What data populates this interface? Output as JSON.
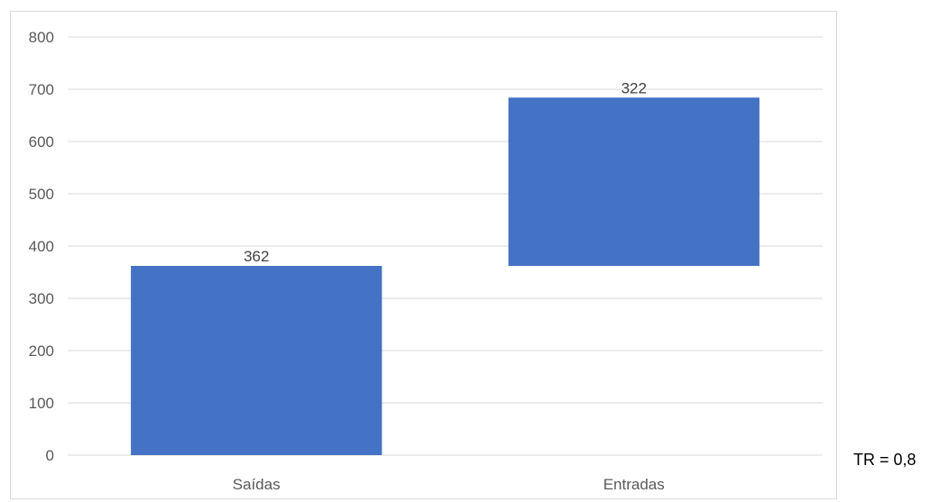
{
  "chart_data": {
    "type": "bar",
    "subtype": "waterfall",
    "categories": [
      "Saídas",
      "Entradas"
    ],
    "values": [
      362,
      322
    ],
    "bar_bases": [
      0,
      362
    ],
    "data_labels": [
      "362",
      "322"
    ],
    "title": "",
    "xlabel": "",
    "ylabel": "",
    "ylim": [
      0,
      800
    ],
    "yticks": [
      "0",
      "100",
      "200",
      "300",
      "400",
      "500",
      "600",
      "700",
      "800"
    ],
    "grid": true,
    "legend": "none",
    "bar_color": "#4472c4",
    "grid_color": "#d9d9d9"
  },
  "annotation": {
    "text": "TR = 0,8"
  }
}
